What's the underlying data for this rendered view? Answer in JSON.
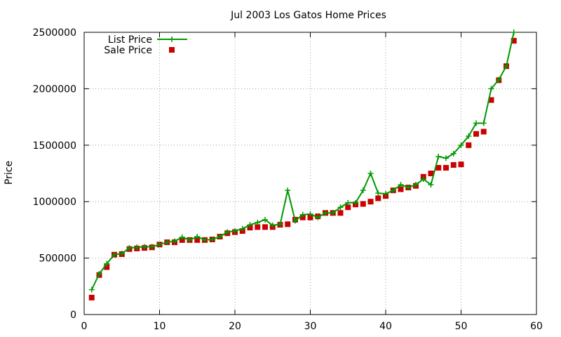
{
  "chart_data": {
    "type": "line",
    "title": "Jul 2003 Los Gatos Home Prices",
    "xlabel": "",
    "ylabel": "Price",
    "xlim": [
      0,
      60
    ],
    "ylim": [
      0,
      2500000
    ],
    "xticks": [
      0,
      10,
      20,
      30,
      40,
      50,
      60
    ],
    "yticks": [
      0,
      500000,
      1000000,
      1500000,
      2000000,
      2500000
    ],
    "xtick_labels": [
      "0",
      "10",
      "20",
      "30",
      "40",
      "50",
      "60"
    ],
    "ytick_labels": [
      "0",
      "500000",
      "1000000",
      "1500000",
      "2000000",
      "2500000"
    ],
    "grid": true,
    "legend_position": "top-left",
    "x": [
      1,
      2,
      3,
      4,
      5,
      6,
      7,
      8,
      9,
      10,
      11,
      12,
      13,
      14,
      15,
      16,
      17,
      18,
      19,
      20,
      21,
      22,
      23,
      24,
      25,
      26,
      27,
      28,
      29,
      30,
      31,
      32,
      33,
      34,
      35,
      36,
      37,
      38,
      39,
      40,
      41,
      42,
      43,
      44,
      45,
      46,
      47,
      48,
      49,
      50,
      51,
      52,
      53,
      54,
      55,
      56,
      57
    ],
    "series": [
      {
        "name": "List Price",
        "style": "lines+points",
        "marker": "plus",
        "color": "#009900",
        "values": [
          220000,
          360000,
          450000,
          530000,
          540000,
          590000,
          595000,
          600000,
          600000,
          620000,
          640000,
          650000,
          685000,
          660000,
          690000,
          660000,
          665000,
          690000,
          730000,
          740000,
          760000,
          795000,
          815000,
          840000,
          790000,
          800000,
          1100000,
          830000,
          885000,
          890000,
          860000,
          900000,
          900000,
          950000,
          990000,
          990000,
          1100000,
          1250000,
          1075000,
          1070000,
          1100000,
          1150000,
          1125000,
          1150000,
          1200000,
          1150000,
          1400000,
          1385000,
          1425000,
          1500000,
          1580000,
          1695000,
          1695000,
          2000000,
          2080000,
          2200000,
          2500000
        ]
      },
      {
        "name": "Sale Price",
        "style": "points",
        "marker": "square",
        "color": "#cc0000",
        "values": [
          150000,
          350000,
          420000,
          530000,
          535000,
          580000,
          585000,
          590000,
          595000,
          620000,
          640000,
          640000,
          660000,
          660000,
          660000,
          660000,
          665000,
          690000,
          720000,
          730000,
          740000,
          770000,
          775000,
          775000,
          775000,
          795000,
          800000,
          840000,
          860000,
          860000,
          870000,
          900000,
          900000,
          900000,
          950000,
          975000,
          980000,
          1000000,
          1030000,
          1050000,
          1100000,
          1110000,
          1125000,
          1140000,
          1220000,
          1250000,
          1300000,
          1300000,
          1325000,
          1330000,
          1500000,
          1600000,
          1620000,
          1900000,
          2075000,
          2200000,
          2425000
        ]
      }
    ]
  }
}
